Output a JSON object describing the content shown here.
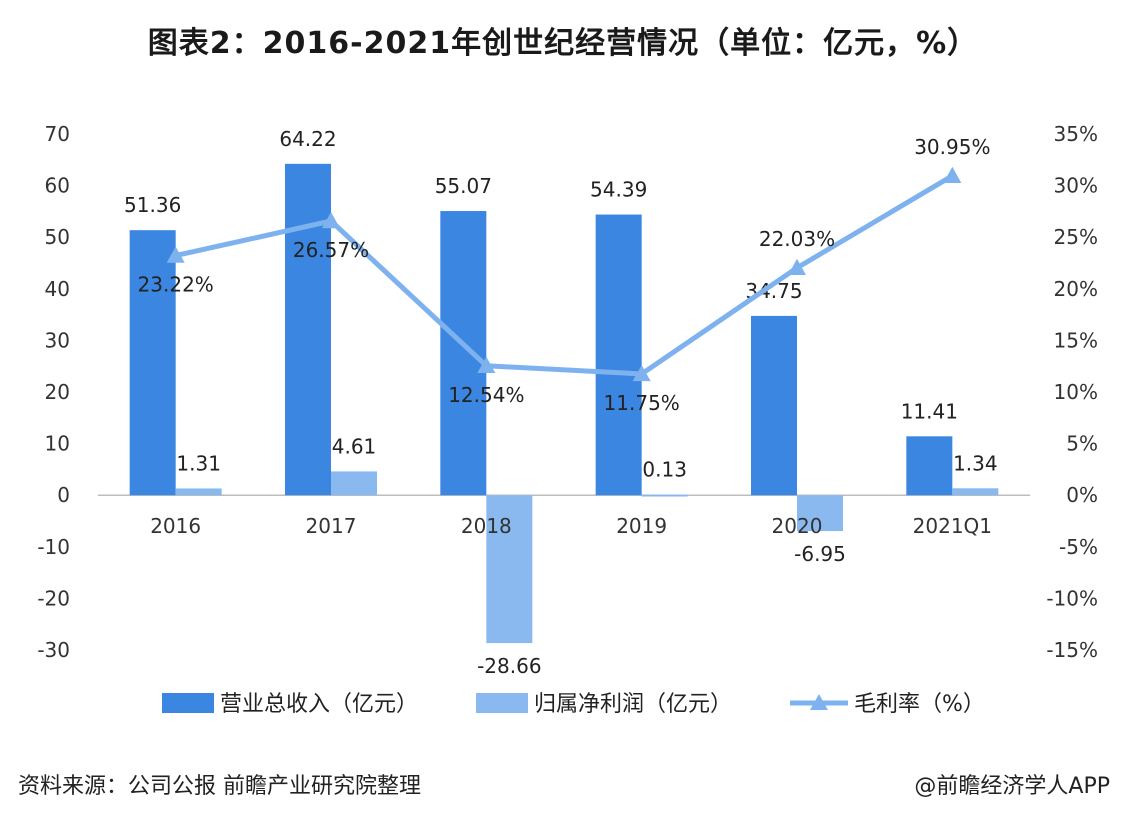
{
  "title": "图表2：2016-2021年创世纪经营情况（单位：亿元，%）",
  "footer": {
    "source": "资料来源：公司公报  前瞻产业研究院整理",
    "brand": "@前瞻经济学人APP"
  },
  "colors": {
    "revenue": "#3b86e0",
    "profit": "#8ab9f0",
    "margin": "#7eb2ef",
    "axis": "#bdbdbd"
  },
  "chart_data": {
    "type": "bar",
    "title": "图表2：2016-2021年创世纪经营情况（单位：亿元，%）",
    "categories": [
      "2016",
      "2017",
      "2018",
      "2019",
      "2020",
      "2021Q1"
    ],
    "series": [
      {
        "name": "营业总收入（亿元）",
        "type": "bar",
        "axis": "left",
        "values": [
          51.36,
          64.22,
          55.07,
          54.39,
          34.75,
          11.41
        ],
        "labels": [
          "51.36",
          "64.22",
          "55.07",
          "54.39",
          "34.75",
          "11.41"
        ]
      },
      {
        "name": "归属净利润（亿元）",
        "type": "bar",
        "axis": "left",
        "values": [
          1.31,
          4.61,
          -28.66,
          0.13,
          -6.95,
          1.34
        ],
        "labels": [
          "1.31",
          "4.61",
          "-28.66",
          "0.13",
          "-6.95",
          "1.34"
        ]
      },
      {
        "name": "毛利率（%）",
        "type": "line",
        "axis": "right",
        "values": [
          23.22,
          26.57,
          12.54,
          11.75,
          22.03,
          30.95
        ],
        "labels": [
          "23.22%",
          "26.57%",
          "12.54%",
          "11.75%",
          "22.03%",
          "30.95%"
        ]
      }
    ],
    "y_left": {
      "ylim": [
        -30,
        70
      ],
      "ticks": [
        "70",
        "60",
        "50",
        "40",
        "30",
        "20",
        "10",
        "0",
        "-10",
        "-20",
        "-30"
      ]
    },
    "y_right": {
      "ylim": [
        -15,
        35
      ],
      "ticks": [
        "35%",
        "30%",
        "25%",
        "20%",
        "15%",
        "10%",
        "5%",
        "0%",
        "-5%",
        "-10%",
        "-15%"
      ]
    },
    "legend_position": "bottom",
    "grid": false
  }
}
